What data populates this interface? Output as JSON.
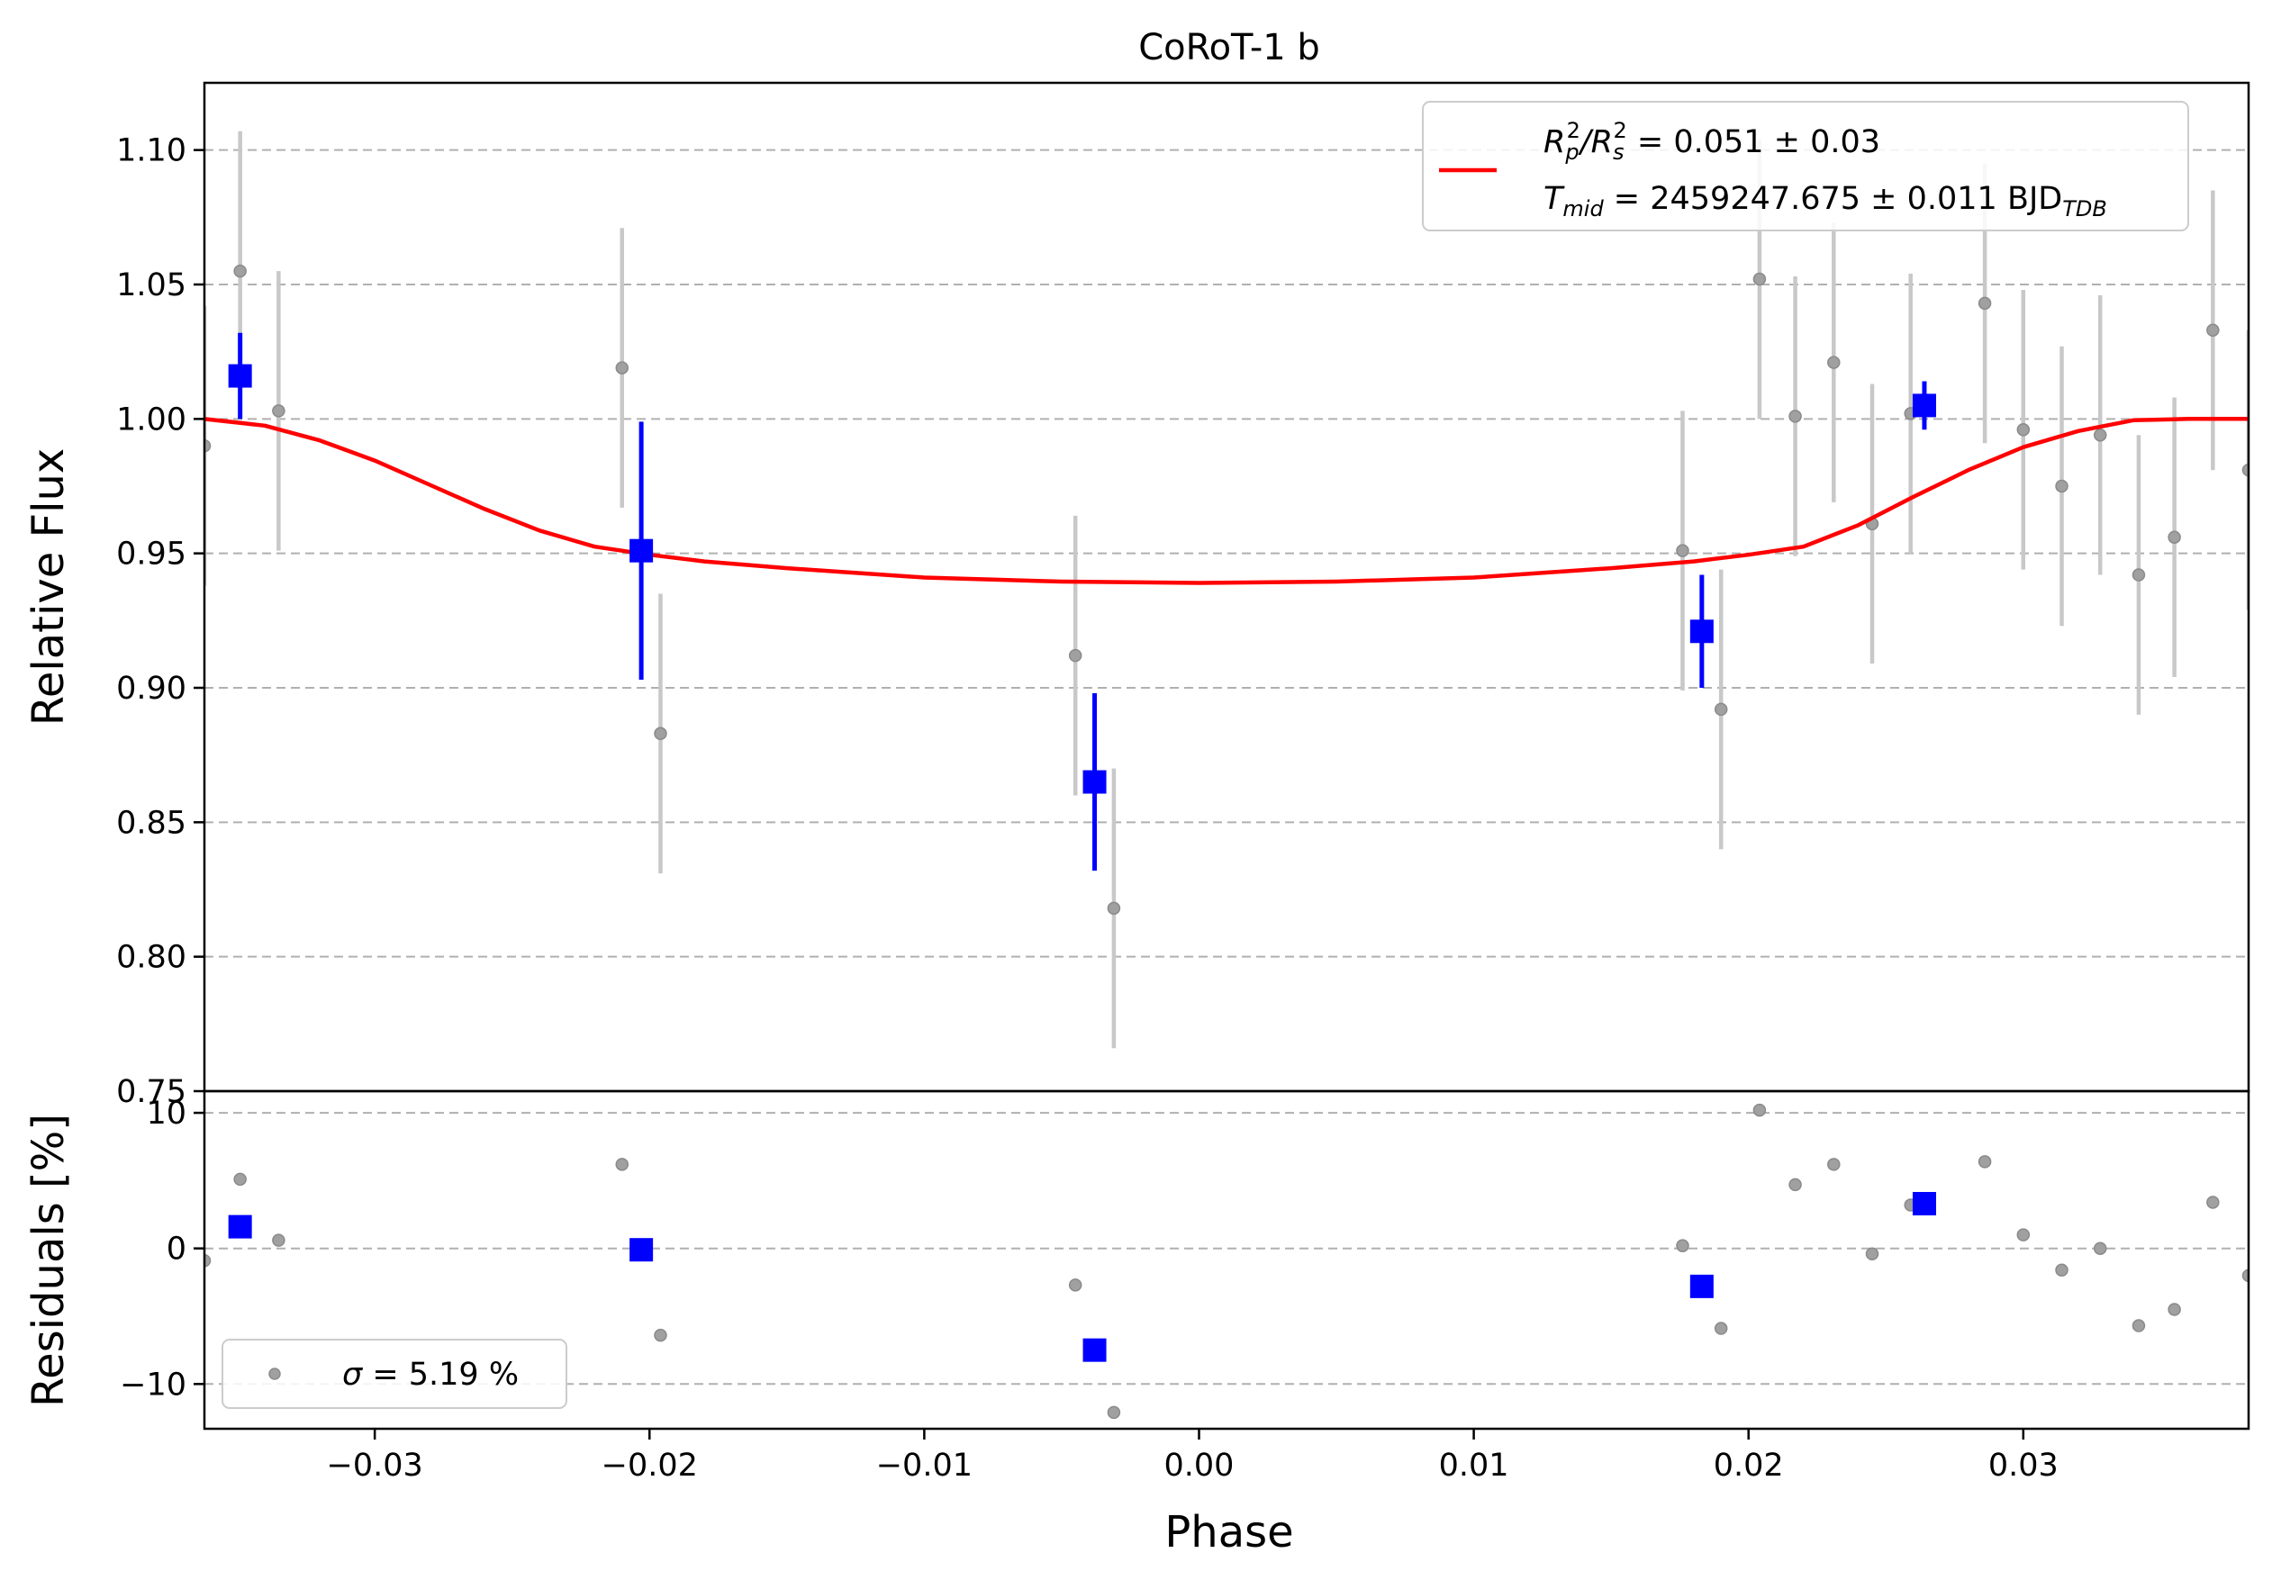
{
  "chart_data": {
    "type": "scatter",
    "title": "CoRoT-1 b",
    "xlabel": "Phase",
    "xlim": [
      -0.0362,
      0.0382
    ],
    "x_ticks": [
      -0.03,
      -0.02,
      -0.01,
      0.0,
      0.01,
      0.02,
      0.03
    ],
    "x_tick_labels": [
      "−0.03",
      "−0.02",
      "−0.01",
      "0.00",
      "0.01",
      "0.02",
      "0.03"
    ],
    "grid": "horizontal dashed",
    "panels": {
      "flux": {
        "ylabel": "Relative Flux",
        "ylim": [
          0.75,
          1.125
        ],
        "y_ticks": [
          0.75,
          0.8,
          0.85,
          0.9,
          0.95,
          1.0,
          1.05,
          1.1
        ],
        "y_tick_labels": [
          "0.75",
          "0.80",
          "0.85",
          "0.90",
          "0.95",
          "1.00",
          "1.05",
          "1.10"
        ],
        "legend": {
          "placement": "upper right",
          "line1": {
            "prefix": "R",
            "sub1": "p",
            "mid1": "2",
            "slash": "/R",
            "sub2": "s",
            "mid2": "2",
            "rest": " = 0.051 ± 0.03"
          },
          "line2": {
            "prefix": "T",
            "sub1": "mid",
            "rest": " = 2459247.675 ± 0.011 BJD",
            "sub2": "TDB"
          }
        },
        "raw_points": [
          {
            "x": -0.0362,
            "y": 0.99,
            "err": 0.052
          },
          {
            "x": -0.0349,
            "y": 1.055,
            "err": 0.052
          },
          {
            "x": -0.0335,
            "y": 1.003,
            "err": 0.052
          },
          {
            "x": -0.021,
            "y": 1.019,
            "err": 0.052
          },
          {
            "x": -0.0196,
            "y": 0.883,
            "err": 0.052
          },
          {
            "x": -0.0045,
            "y": 0.912,
            "err": 0.052
          },
          {
            "x": -0.0031,
            "y": 0.818,
            "err": 0.052
          },
          {
            "x": 0.0176,
            "y": 0.951,
            "err": 0.052
          },
          {
            "x": 0.019,
            "y": 0.892,
            "err": 0.052
          },
          {
            "x": 0.0204,
            "y": 1.052,
            "err": 0.052
          },
          {
            "x": 0.0217,
            "y": 1.001,
            "err": 0.052
          },
          {
            "x": 0.0231,
            "y": 1.021,
            "err": 0.052
          },
          {
            "x": 0.0245,
            "y": 0.961,
            "err": 0.052
          },
          {
            "x": 0.0259,
            "y": 1.002,
            "err": 0.052
          },
          {
            "x": 0.0286,
            "y": 1.043,
            "err": 0.052
          },
          {
            "x": 0.03,
            "y": 0.996,
            "err": 0.052
          },
          {
            "x": 0.0314,
            "y": 0.975,
            "err": 0.052
          },
          {
            "x": 0.0328,
            "y": 0.994,
            "err": 0.052
          },
          {
            "x": 0.0342,
            "y": 0.942,
            "err": 0.052
          },
          {
            "x": 0.0355,
            "y": 0.956,
            "err": 0.052
          },
          {
            "x": 0.0369,
            "y": 1.033,
            "err": 0.052
          },
          {
            "x": 0.0382,
            "y": 0.981,
            "err": 0.052
          }
        ],
        "binned_points": [
          {
            "x": -0.0349,
            "y": 1.016,
            "err": 0.016
          },
          {
            "x": -0.0203,
            "y": 0.951,
            "err": 0.048
          },
          {
            "x": -0.0038,
            "y": 0.865,
            "err": 0.033
          },
          {
            "x": 0.0183,
            "y": 0.921,
            "err": 0.021
          },
          {
            "x": 0.0264,
            "y": 1.005,
            "err": 0.009
          }
        ],
        "model": {
          "x": [
            -0.0362,
            -0.034,
            -0.032,
            -0.03,
            -0.028,
            -0.026,
            -0.024,
            -0.022,
            -0.02,
            -0.018,
            -0.015,
            -0.01,
            -0.005,
            0.0,
            0.005,
            0.01,
            0.015,
            0.018,
            0.02,
            0.022,
            0.024,
            0.026,
            0.028,
            0.03,
            0.032,
            0.034,
            0.036,
            0.0382
          ],
          "y": [
            1.0,
            0.9975,
            0.992,
            0.9845,
            0.9755,
            0.9665,
            0.9585,
            0.9525,
            0.9495,
            0.947,
            0.9445,
            0.941,
            0.9395,
            0.939,
            0.9395,
            0.941,
            0.9445,
            0.947,
            0.9495,
            0.9525,
            0.9605,
            0.971,
            0.981,
            0.9895,
            0.9955,
            0.9995,
            1.0,
            1.0
          ]
        }
      },
      "residuals": {
        "ylabel": "Residuals [%]",
        "ylim": [
          -13.3,
          11.6
        ],
        "y_ticks": [
          -10,
          0,
          10
        ],
        "y_tick_labels": [
          "−10",
          "0",
          "10"
        ],
        "legend": {
          "placement": "lower left",
          "sigma_symbol": "σ",
          "label": " = 5.19 %"
        },
        "raw_points": [
          {
            "x": -0.0362,
            "y": -0.9
          },
          {
            "x": -0.0349,
            "y": 5.1
          },
          {
            "x": -0.0335,
            "y": 0.6
          },
          {
            "x": -0.021,
            "y": 6.2
          },
          {
            "x": -0.0196,
            "y": -6.4
          },
          {
            "x": -0.0045,
            "y": -2.7
          },
          {
            "x": -0.0031,
            "y": -12.1
          },
          {
            "x": 0.0176,
            "y": 0.2
          },
          {
            "x": 0.019,
            "y": -5.9
          },
          {
            "x": 0.0204,
            "y": 10.2
          },
          {
            "x": 0.0217,
            "y": 4.7
          },
          {
            "x": 0.0231,
            "y": 6.2
          },
          {
            "x": 0.0245,
            "y": -0.4
          },
          {
            "x": 0.0259,
            "y": 3.2
          },
          {
            "x": 0.0286,
            "y": 6.4
          },
          {
            "x": 0.03,
            "y": 1.0
          },
          {
            "x": 0.0314,
            "y": -1.6
          },
          {
            "x": 0.0328,
            "y": 0.0
          },
          {
            "x": 0.0342,
            "y": -5.7
          },
          {
            "x": 0.0355,
            "y": -4.5
          },
          {
            "x": 0.0369,
            "y": 3.4
          },
          {
            "x": 0.0382,
            "y": -2.0
          }
        ],
        "binned_points": [
          {
            "x": -0.0349,
            "y": 1.6
          },
          {
            "x": -0.0203,
            "y": -0.1
          },
          {
            "x": -0.0038,
            "y": -7.5
          },
          {
            "x": 0.0183,
            "y": -2.8
          },
          {
            "x": 0.0264,
            "y": 3.3
          }
        ]
      }
    },
    "colors": {
      "raw_error": "#c8c8c8",
      "raw_point": "#a0a0a0",
      "binned": "#0000ff",
      "model": "#ff0000",
      "grid": "#b0b0b0",
      "axes": "#000000",
      "legend_border": "#cccccc"
    }
  }
}
